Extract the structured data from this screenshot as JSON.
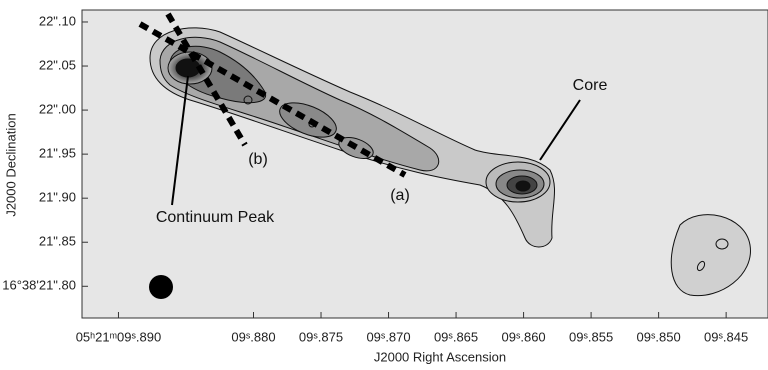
{
  "chart_data": {
    "type": "image",
    "x_label": "J2000 Right Ascension",
    "y_label": "J2000 Declination",
    "xlim": [
      9.8927,
      9.8419
    ],
    "ylim": [
      21.764,
      22.1136
    ],
    "xticks": [
      {
        "value": 9.89,
        "label": "05ʰ21ᵐ09ˢ.890"
      },
      {
        "value": 9.88,
        "label": "09ˢ.880"
      },
      {
        "value": 9.875,
        "label": "09ˢ.875"
      },
      {
        "value": 9.87,
        "label": "09ˢ.870"
      },
      {
        "value": 9.865,
        "label": "09ˢ.865"
      },
      {
        "value": 9.86,
        "label": "09ˢ.860"
      },
      {
        "value": 9.855,
        "label": "09ˢ.855"
      },
      {
        "value": 9.85,
        "label": "09ˢ.850"
      },
      {
        "value": 9.845,
        "label": "09ˢ.845"
      }
    ],
    "yticks": [
      {
        "value": 22.1,
        "label": "22\".10"
      },
      {
        "value": 22.05,
        "label": "22\".05"
      },
      {
        "value": 22.0,
        "label": "22\".00"
      },
      {
        "value": 21.95,
        "label": "21\".95"
      },
      {
        "value": 21.9,
        "label": "21\".90"
      },
      {
        "value": 21.85,
        "label": "21\".85"
      },
      {
        "value": 21.8,
        "label": "16°38'21\".80"
      }
    ],
    "annotations": [
      "Core",
      "Continuum Peak",
      "(a)",
      "(b)"
    ]
  }
}
